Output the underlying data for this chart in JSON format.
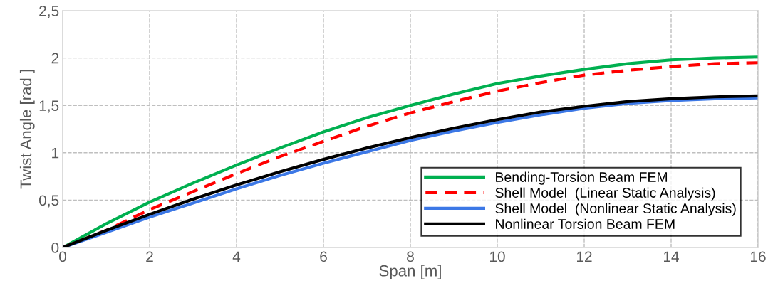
{
  "chart_data": {
    "type": "line",
    "xlabel": "Span [m]",
    "ylabel": "Twist Angle [rad ]",
    "x": [
      0,
      1,
      2,
      3,
      4,
      5,
      6,
      7,
      8,
      9,
      10,
      11,
      12,
      13,
      14,
      15,
      16
    ],
    "series": [
      {
        "name": "Bending-Torsion Beam FEM",
        "color": "#00b050",
        "values": [
          0,
          0.25,
          0.48,
          0.68,
          0.87,
          1.05,
          1.22,
          1.37,
          1.5,
          1.62,
          1.73,
          1.81,
          1.88,
          1.94,
          1.98,
          2.0,
          2.01
        ]
      },
      {
        "name": "Shell Model  (Linear Static Analysis)",
        "color": "#ff0000",
        "line_style": "dashed",
        "values": [
          0,
          0.18,
          0.4,
          0.59,
          0.78,
          0.96,
          1.12,
          1.28,
          1.42,
          1.54,
          1.65,
          1.74,
          1.82,
          1.87,
          1.91,
          1.94,
          1.95
        ]
      },
      {
        "name": "Shell Model  (Nonlinear Static Analysis)",
        "color": "#3c78e6",
        "values": [
          0,
          0.16,
          0.32,
          0.47,
          0.62,
          0.76,
          0.89,
          1.01,
          1.13,
          1.23,
          1.32,
          1.4,
          1.47,
          1.52,
          1.55,
          1.57,
          1.58
        ]
      },
      {
        "name": "Nonlinear Torsion Beam FEM",
        "color": "#000000",
        "values": [
          0,
          0.18,
          0.35,
          0.51,
          0.66,
          0.8,
          0.93,
          1.05,
          1.16,
          1.26,
          1.35,
          1.43,
          1.49,
          1.54,
          1.57,
          1.59,
          1.6
        ]
      }
    ],
    "xlim": [
      0,
      16
    ],
    "xticks": [
      0,
      2,
      4,
      6,
      8,
      10,
      12,
      14,
      16
    ],
    "ylim": [
      0,
      2.5
    ],
    "yticks": [
      0,
      {
        "value": 0.5,
        "label": "0,5"
      },
      1,
      {
        "value": 1.5,
        "label": "1,5"
      },
      2,
      {
        "value": 2.5,
        "label": "2,5"
      }
    ],
    "grid": true,
    "legend": "bottom right",
    "line_style": "solid"
  }
}
